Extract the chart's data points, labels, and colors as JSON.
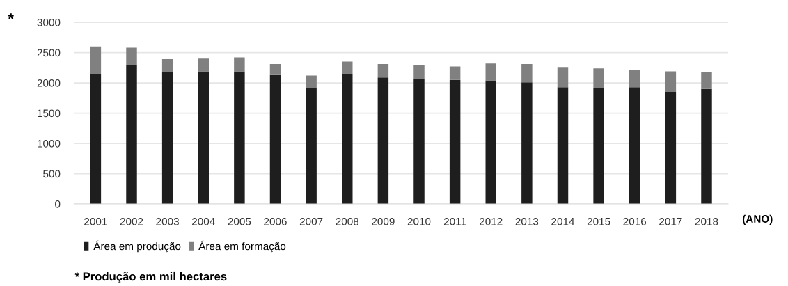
{
  "chart_data": {
    "type": "bar",
    "stacked": true,
    "categories": [
      "2001",
      "2002",
      "2003",
      "2004",
      "2005",
      "2006",
      "2007",
      "2008",
      "2009",
      "2010",
      "2011",
      "2012",
      "2013",
      "2014",
      "2015",
      "2016",
      "2017",
      "2018"
    ],
    "series": [
      {
        "name": "Área em produção",
        "color": "#1e1e1e",
        "values": [
          2150,
          2300,
          2180,
          2190,
          2190,
          2130,
          1920,
          2150,
          2090,
          2070,
          2050,
          2040,
          2010,
          1930,
          1910,
          1930,
          1850,
          1900
        ]
      },
      {
        "name": "Área em formação",
        "color": "#808080",
        "values": [
          450,
          280,
          210,
          210,
          230,
          180,
          200,
          200,
          220,
          220,
          220,
          280,
          300,
          320,
          330,
          290,
          340,
          280
        ]
      }
    ],
    "xlabel": "(ANO)",
    "ylim": [
      0,
      3000
    ],
    "yticks": [
      0,
      500,
      1000,
      1500,
      2000,
      2500,
      3000
    ],
    "grid": "y",
    "legend": "bottom left",
    "annotations": [
      "*",
      "* Produção em mil hectares"
    ]
  }
}
